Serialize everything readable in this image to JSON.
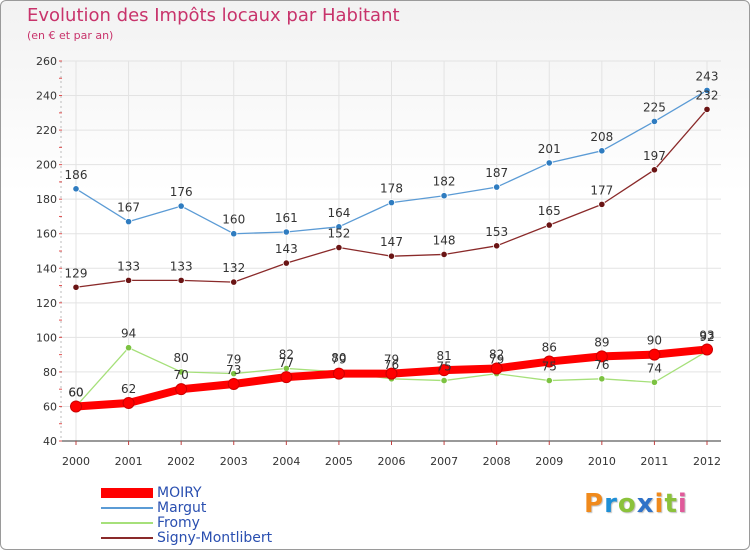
{
  "title": "Evolution des Impôts locaux par Habitant",
  "subtitle": "(en € et par an)",
  "logo": {
    "letters": [
      "P",
      "r",
      "o",
      "x",
      "i",
      "t",
      "i"
    ],
    "colors": [
      "#f08a1c",
      "#1e8fd6",
      "#8bc23b",
      "#2f72c8",
      "#f08a1c",
      "#8bc23b",
      "#e05a9a"
    ]
  },
  "chart_data": {
    "type": "line",
    "title": "Evolution des Impôts locaux par Habitant",
    "subtitle": "(en € et par an)",
    "x": [
      "2000",
      "2001",
      "2002",
      "2003",
      "2004",
      "2005",
      "2006",
      "2007",
      "2008",
      "2009",
      "2010",
      "2011",
      "2012"
    ],
    "ylim": [
      40,
      260
    ],
    "yticks": [
      "40",
      "60",
      "80",
      "100",
      "120",
      "140",
      "160",
      "180",
      "200",
      "220",
      "240",
      "260"
    ],
    "grid": true,
    "legend_position": "bottom-left",
    "series": [
      {
        "name": "Margut",
        "color": "#5b9bd5",
        "marker": "#2f7cc0",
        "values": [
          186,
          167,
          176,
          160,
          161,
          164,
          178,
          182,
          187,
          201,
          208,
          225,
          243
        ],
        "labels": [
          "186",
          "167",
          "176",
          "160",
          "161",
          "164",
          "178",
          "182",
          "187",
          "201",
          "208",
          "225",
          "243"
        ]
      },
      {
        "name": "Signy-Montlibert",
        "color": "#8a2a2a",
        "marker": "#6a1414",
        "values": [
          129,
          133,
          133,
          132,
          143,
          152,
          147,
          148,
          153,
          165,
          177,
          197,
          232
        ],
        "labels": [
          "129",
          "133",
          "133",
          "132",
          "143",
          "152",
          "147",
          "148",
          "153",
          "165",
          "177",
          "197",
          "232"
        ]
      },
      {
        "name": "Fromy",
        "color": "#a6e07a",
        "marker": "#7cc241",
        "values": [
          60,
          94,
          80,
          79,
          82,
          80,
          76,
          75,
          79,
          75,
          76,
          74,
          92
        ],
        "labels": [
          "60",
          "94",
          "80",
          "79",
          "82",
          "80",
          "76",
          "75",
          "79",
          "75",
          "76",
          "74",
          "92"
        ]
      },
      {
        "name": "MOIRY",
        "color": "#ff0000",
        "marker": "#ff0000",
        "values": [
          60,
          62,
          70,
          73,
          77,
          79,
          79,
          81,
          82,
          86,
          89,
          90,
          93
        ],
        "labels": [
          "60",
          "62",
          "70",
          "73",
          "77",
          "79",
          "79",
          "81",
          "82",
          "86",
          "89",
          "90",
          "93"
        ]
      }
    ],
    "legend": [
      "MOIRY",
      "Margut",
      "Fromy",
      "Signy-Montlibert"
    ]
  }
}
